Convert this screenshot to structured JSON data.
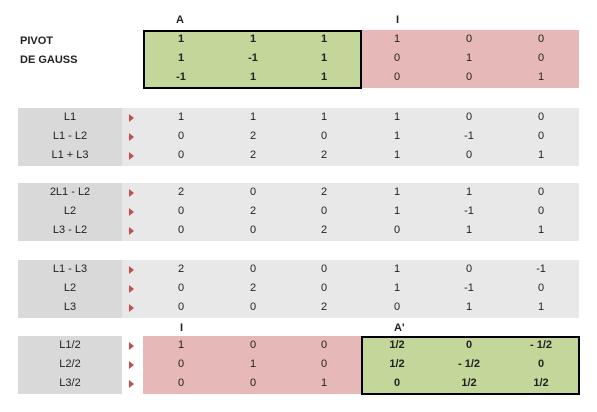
{
  "headers": {
    "top_a": "A",
    "top_i": "I",
    "bottom_i": "I",
    "bottom_a_prime": "A'"
  },
  "title_lines": [
    "PIVOT",
    "DE GAUSS"
  ],
  "top_matrix": [
    [
      "1",
      "1",
      "1",
      "1",
      "0",
      "0"
    ],
    [
      "1",
      "-1",
      "1",
      "0",
      "1",
      "0"
    ],
    [
      "-1",
      "1",
      "1",
      "0",
      "0",
      "1"
    ]
  ],
  "blocks": [
    {
      "labels": [
        "L1",
        "L1 - L2",
        "L1 + L3"
      ],
      "rows": [
        [
          "1",
          "1",
          "1",
          "1",
          "0",
          "0"
        ],
        [
          "0",
          "2",
          "0",
          "1",
          "-1",
          "0"
        ],
        [
          "0",
          "2",
          "2",
          "1",
          "0",
          "1"
        ]
      ]
    },
    {
      "labels": [
        "2L1 - L2",
        "L2",
        "L3 - L2"
      ],
      "rows": [
        [
          "2",
          "0",
          "2",
          "1",
          "1",
          "0"
        ],
        [
          "0",
          "2",
          "0",
          "1",
          "-1",
          "0"
        ],
        [
          "0",
          "0",
          "2",
          "0",
          "1",
          "1"
        ]
      ]
    },
    {
      "labels": [
        "L1 - L3",
        "L2",
        "L3"
      ],
      "rows": [
        [
          "2",
          "0",
          "0",
          "1",
          "0",
          "-1"
        ],
        [
          "0",
          "2",
          "0",
          "1",
          "-1",
          "0"
        ],
        [
          "0",
          "0",
          "2",
          "0",
          "1",
          "1"
        ]
      ]
    },
    {
      "labels": [
        "L1/2",
        "L2/2",
        "L3/2"
      ],
      "rows": [
        [
          "1",
          "0",
          "0",
          "1/2",
          "0",
          "- 1/2"
        ],
        [
          "0",
          "1",
          "0",
          "1/2",
          "- 1/2",
          "0"
        ],
        [
          "0",
          "0",
          "1",
          "0",
          "1/2",
          "1/2"
        ]
      ]
    }
  ],
  "colors": {
    "green": "#c4d79b",
    "red": "#e6b8b7",
    "arrow": "#c0504d",
    "band": "#e8e8e8",
    "label_bg": "#d9d9d9"
  }
}
